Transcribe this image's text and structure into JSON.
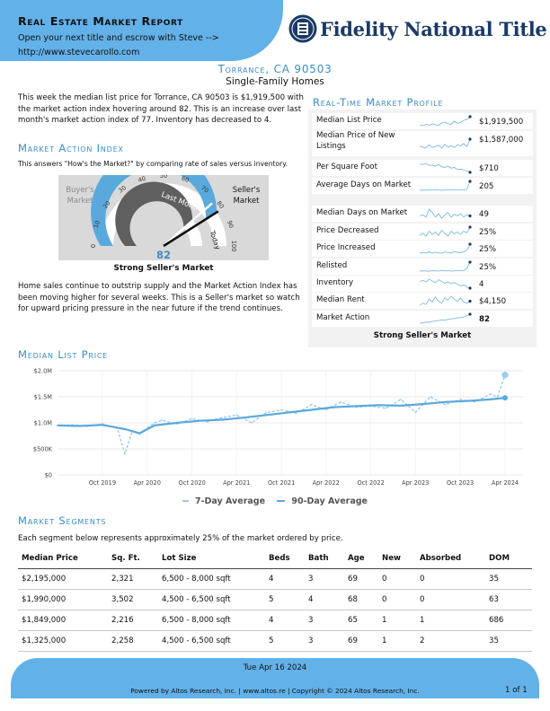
{
  "header": {
    "title": "Real Estate Market Report",
    "subtitle": "Open your next title and escrow with Steve -->",
    "url": "http://www.stevecarollo.com",
    "logo_text": "Fidelity National Title"
  },
  "location": {
    "title": "Torrance, CA 90503",
    "subtitle": "Single-Family Homes"
  },
  "summary_text": "This week the median list price for Torrance, CA 90503 is $1,919,500 with the market action index hovering around 82. This is an increase over last month's market action index of 77. Inventory has decreased to 4.",
  "market_action": {
    "heading": "Market Action Index",
    "intro": "This answers \"How's the Market?\" by comparing rate of sales versus inventory.",
    "buyers_label": "Buyer's Market",
    "sellers_label": "Seller's Market",
    "last_month_label": "Last Month",
    "today_label": "Today",
    "value": 82,
    "value_text": "82",
    "last_month_value": 77,
    "ticks": [
      "0",
      "10",
      "20",
      "30",
      "40",
      "50",
      "60",
      "70",
      "80",
      "90",
      "100"
    ],
    "caption": "Strong Seller's Market",
    "body": "Home sales continue to outstrip supply and the Market Action Index has been moving higher for several weeks. This is a Seller's market so watch for upward pricing pressure in the near future if the trend continues."
  },
  "profile": {
    "heading": "Real-Time Market Profile",
    "rows": [
      {
        "label": "Median List Price",
        "value": "$1,919,500",
        "bold": false,
        "trend": [
          50,
          45,
          52,
          48,
          55,
          50,
          47,
          60,
          65,
          55,
          52,
          70,
          58,
          62,
          75,
          80,
          95
        ]
      },
      {
        "label": "Median Price of New Listings",
        "value": "$1,587,000",
        "bold": false,
        "trend": [
          55,
          50,
          45,
          60,
          48,
          52,
          58,
          45,
          62,
          50,
          55,
          48,
          60,
          55,
          65,
          52,
          85
        ]
      },
      {
        "label": "Per Square Foot",
        "value": "$710",
        "bold": false,
        "trend": [
          70,
          68,
          72,
          65,
          66,
          62,
          68,
          60,
          58,
          62,
          55,
          58,
          50,
          52,
          48,
          45,
          40
        ]
      },
      {
        "label": "Average Days on Market",
        "value": "205",
        "bold": false,
        "trend": [
          20,
          22,
          20,
          24,
          21,
          25,
          22,
          20,
          23,
          22,
          26,
          24,
          22,
          25,
          23,
          28,
          90
        ]
      },
      {
        "label": "Median Days on Market",
        "value": "49",
        "bold": false,
        "trend": [
          45,
          50,
          40,
          75,
          60,
          40,
          55,
          35,
          50,
          60,
          40,
          52,
          45,
          55,
          40,
          50,
          45
        ]
      },
      {
        "label": "Price Decreased",
        "value": "25%",
        "bold": false,
        "trend": [
          40,
          45,
          38,
          50,
          42,
          48,
          40,
          52,
          45,
          38,
          50,
          44,
          48,
          42,
          50,
          46,
          60
        ]
      },
      {
        "label": "Price Increased",
        "value": "25%",
        "bold": false,
        "trend": [
          30,
          32,
          30,
          35,
          30,
          33,
          31,
          30,
          34,
          32,
          30,
          35,
          33,
          31,
          35,
          40,
          60
        ]
      },
      {
        "label": "Relisted",
        "value": "25%",
        "bold": false,
        "trend": [
          20,
          22,
          21,
          20,
          23,
          22,
          21,
          24,
          22,
          23,
          21,
          22,
          24,
          23,
          25,
          40,
          90
        ]
      },
      {
        "label": "Inventory",
        "value": "4",
        "bold": false,
        "trend": [
          60,
          65,
          58,
          70,
          62,
          55,
          68,
          60,
          52,
          58,
          50,
          55,
          48,
          40,
          45,
          35,
          30
        ]
      },
      {
        "label": "Median Rent",
        "value": "$4,150",
        "bold": false,
        "trend": [
          40,
          45,
          42,
          55,
          48,
          60,
          50,
          45,
          58,
          52,
          62,
          55,
          50,
          58,
          48,
          45,
          50
        ]
      },
      {
        "label": "Market Action",
        "value": "82",
        "bold": true,
        "trend": [
          40,
          42,
          45,
          44,
          48,
          50,
          52,
          55,
          54,
          58,
          60,
          62,
          65,
          66,
          70,
          75,
          82
        ]
      }
    ],
    "caption": "Strong Seller's Market"
  },
  "median_list_price": {
    "heading": "Median List Price",
    "legend": [
      "7-Day Average",
      "90-Day Average"
    ]
  },
  "chart_data": {
    "type": "line",
    "title": "Median List Price",
    "x_tick_labels": [
      "Oct 2019",
      "Apr 2020",
      "Oct 2020",
      "Apr 2021",
      "Oct 2021",
      "Apr 2022",
      "Oct 2022",
      "Apr 2023",
      "Oct 2023",
      "Apr 2024"
    ],
    "y_tick_labels": [
      "$2.0M",
      "$1.5M",
      "$1.0M",
      "$500K",
      "$0"
    ],
    "ylim": [
      0,
      2000000
    ],
    "x_range": [
      "2019-04",
      "2024-04"
    ],
    "grid": true,
    "legend_position": "bottom",
    "series": [
      {
        "name": "7-Day Average",
        "style": "dashed",
        "color": "#9ccbec",
        "x": [
          "2019-04",
          "2019-06",
          "2019-08",
          "2019-10",
          "2019-12",
          "2020-01",
          "2020-02",
          "2020-03",
          "2020-04",
          "2020-05",
          "2020-06",
          "2020-08",
          "2020-10",
          "2020-12",
          "2021-02",
          "2021-04",
          "2021-06",
          "2021-08",
          "2021-10",
          "2021-12",
          "2022-02",
          "2022-04",
          "2022-06",
          "2022-08",
          "2022-10",
          "2022-12",
          "2023-02",
          "2023-04",
          "2023-06",
          "2023-08",
          "2023-10",
          "2023-12",
          "2024-02",
          "2024-03",
          "2024-04"
        ],
        "values": [
          950000,
          960000,
          930000,
          980000,
          900000,
          400000,
          850000,
          780000,
          900000,
          1000000,
          1050000,
          980000,
          1080000,
          1020000,
          1100000,
          1150000,
          1000000,
          1200000,
          1250000,
          1180000,
          1350000,
          1250000,
          1400000,
          1300000,
          1320000,
          1280000,
          1450000,
          1200000,
          1500000,
          1350000,
          1450000,
          1400000,
          1550000,
          1500000,
          1920000
        ]
      },
      {
        "name": "90-Day Average",
        "style": "solid",
        "color": "#5aa9dd",
        "x": [
          "2019-04",
          "2019-07",
          "2019-10",
          "2020-01",
          "2020-03",
          "2020-05",
          "2020-08",
          "2020-11",
          "2021-02",
          "2021-05",
          "2021-08",
          "2021-11",
          "2022-02",
          "2022-05",
          "2022-08",
          "2022-11",
          "2023-02",
          "2023-05",
          "2023-08",
          "2023-11",
          "2024-02",
          "2024-04"
        ],
        "values": [
          950000,
          940000,
          960000,
          880000,
          800000,
          950000,
          1000000,
          1040000,
          1060000,
          1100000,
          1150000,
          1200000,
          1250000,
          1300000,
          1320000,
          1340000,
          1330000,
          1360000,
          1400000,
          1420000,
          1450000,
          1480000
        ]
      }
    ]
  },
  "segments": {
    "heading": "Market Segments",
    "intro": "Each segment below represents approximately 25% of the market ordered by price.",
    "columns": [
      "Median Price",
      "Sq. Ft.",
      "Lot Size",
      "Beds",
      "Bath",
      "Age",
      "New",
      "Absorbed",
      "DOM"
    ],
    "rows": [
      [
        "$2,195,000",
        "2,321",
        "6,500 - 8,000 sqft",
        "4",
        "3",
        "69",
        "0",
        "0",
        "35"
      ],
      [
        "$1,990,000",
        "3,502",
        "4,500 - 6,500 sqft",
        "5",
        "4",
        "68",
        "0",
        "0",
        "63"
      ],
      [
        "$1,849,000",
        "2,216",
        "6,500 - 8,000 sqft",
        "4",
        "3",
        "65",
        "1",
        "1",
        "686"
      ],
      [
        "$1,325,000",
        "2,258",
        "4,500 - 6,500 sqft",
        "5",
        "3",
        "69",
        "1",
        "2",
        "35"
      ]
    ]
  },
  "footer": {
    "date": "Tue Apr 16 2024",
    "powered_by": "Powered by Altos Research, Inc. | www.altos.re | Copyright © 2024 Altos Research, Inc.",
    "page": "1 of 1"
  },
  "colors": {
    "accent": "#63b1e9",
    "heading": "#3d8cc4",
    "logo": "#1b3a66",
    "gauge_fill": "#5aa9dd"
  }
}
